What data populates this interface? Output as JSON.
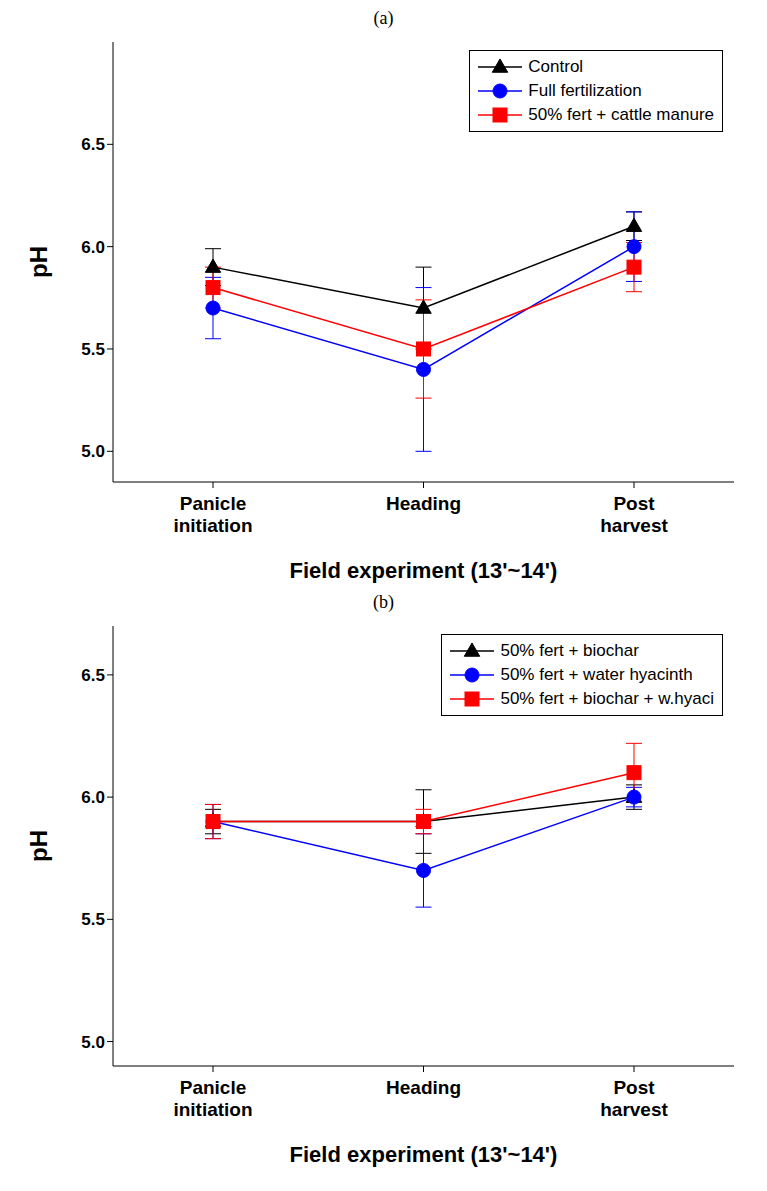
{
  "chart_data": [
    {
      "type": "line",
      "title": "(a)",
      "x_label": "Field experiment (13'~14')",
      "y_label": "pH",
      "categories": [
        "Panicle initiation",
        "Heading",
        "Post harvest"
      ],
      "ylim": [
        4.85,
        7.0
      ],
      "yticks": [
        {
          "value": 5,
          "label": "5.0"
        },
        5.5,
        {
          "value": 6,
          "label": "6.0"
        },
        6.5
      ],
      "grid": false,
      "legend": "upper right",
      "series": [
        {
          "name": "Control",
          "color": "#000000",
          "marker": "triangle",
          "values": [
            5.9,
            5.7,
            6.1
          ],
          "errors": [
            0.09,
            0.2,
            0.07
          ]
        },
        {
          "name": "Full fertilization",
          "color": "#0000ff",
          "marker": "circle",
          "values": [
            5.7,
            5.4,
            6.0
          ],
          "errors": [
            0.15,
            0.4,
            0.17
          ]
        },
        {
          "name": "50% fert + cattle manure",
          "color": "#ff0000",
          "marker": "square",
          "values": [
            5.8,
            5.5,
            5.9
          ],
          "errors": [
            0.1,
            0.24,
            0.12
          ]
        }
      ]
    },
    {
      "type": "line",
      "title": "(b)",
      "x_label": "Field experiment (13'~14')",
      "y_label": "pH",
      "categories": [
        "Panicle initiation",
        "Heading",
        "Post harvest"
      ],
      "ylim": [
        4.9,
        6.7
      ],
      "yticks": [
        {
          "value": 5,
          "label": "5.0"
        },
        5.5,
        {
          "value": 6,
          "label": "6.0"
        },
        6.5
      ],
      "grid": false,
      "legend": "upper right",
      "series": [
        {
          "name": "50% fert + biochar",
          "color": "#000000",
          "marker": "triangle",
          "values": [
            5.9,
            5.9,
            6.0
          ],
          "errors": [
            0.05,
            0.13,
            0.05
          ]
        },
        {
          "name": "50% fert + water hyacinth",
          "color": "#0000ff",
          "marker": "circle",
          "values": [
            5.9,
            5.7,
            6.0
          ],
          "errors": [
            0.07,
            0.15,
            0.04
          ]
        },
        {
          "name": "50% fert + biochar + w.hyaci",
          "color": "#ff0000",
          "marker": "square",
          "values": [
            5.9,
            5.9,
            6.1
          ],
          "errors": [
            0.07,
            0.05,
            0.12
          ]
        }
      ]
    }
  ]
}
